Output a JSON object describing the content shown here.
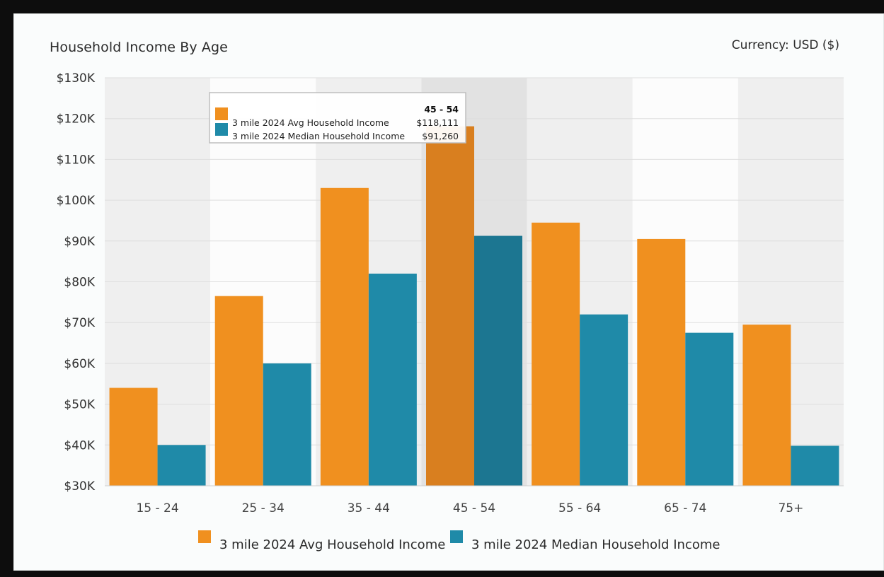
{
  "header": {
    "title": "Household Income By Age",
    "currency": "Currency: USD ($)"
  },
  "colors": {
    "avg": "#f0901f",
    "median": "#1f8aa8",
    "avg_highlight": "#d97f1f",
    "median_highlight": "#1c7691",
    "band_dark": "#efefef",
    "band_light": "#fcfcfc",
    "band_hover": "#e2e2e2"
  },
  "chart_data": {
    "type": "bar",
    "title": "Household Income By Age",
    "categories": [
      "15 - 24",
      "25 - 34",
      "35 - 44",
      "45 - 54",
      "55 - 64",
      "65 - 74",
      "75+"
    ],
    "series": [
      {
        "name": "3 mile 2024 Avg Household Income",
        "values": [
          54000,
          76500,
          103000,
          118111,
          94500,
          90500,
          69500
        ]
      },
      {
        "name": "3 mile 2024 Median Household Income",
        "values": [
          40000,
          60000,
          82000,
          91260,
          72000,
          67500,
          39800
        ]
      }
    ],
    "ylim": [
      30000,
      130000
    ],
    "yticks": [
      "$30K",
      "$40K",
      "$50K",
      "$60K",
      "$70K",
      "$80K",
      "$90K",
      "$100K",
      "$110K",
      "$120K",
      "$130K"
    ],
    "legend": "bottom",
    "highlight_index": 3
  },
  "tooltip": {
    "category": "45 - 54",
    "rows": [
      {
        "label": "3 mile 2024 Avg Household Income",
        "value": "$118,111"
      },
      {
        "label": "3 mile 2024 Median Household Income",
        "value": "$91,260"
      }
    ]
  }
}
